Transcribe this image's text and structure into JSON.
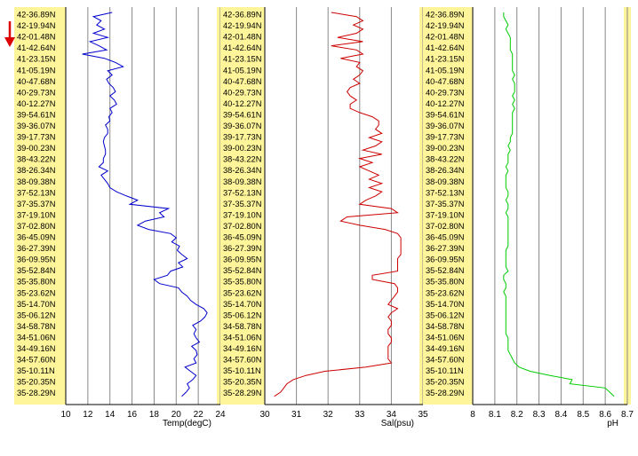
{
  "colors": {
    "label_band": "#fef59a",
    "temp_line": "#0000cc",
    "sal_line": "#cc0000",
    "ph_line": "#00cc00",
    "grid": "#000000",
    "arrow": "#dd0000"
  },
  "latitude_labels": [
    "42-36.89N",
    "42-19.94N",
    "42-01.48N",
    "41-42.64N",
    "41-23.15N",
    "41-05.19N",
    "40-47.68N",
    "40-29.73N",
    "40-12.27N",
    "39-54.61N",
    "39-36.07N",
    "39-17.73N",
    "39-00.23N",
    "38-43.22N",
    "38-26.34N",
    "38-09.38N",
    "37-52.13N",
    "37-35.37N",
    "37-19.10N",
    "37-02.80N",
    "36-45.09N",
    "36-27.39N",
    "36-09.95N",
    "35-52.84N",
    "35-35.80N",
    "35-23.62N",
    "35-14.70N",
    "35-06.12N",
    "34-58.78N",
    "34-51.06N",
    "34-49.16N",
    "34-57.60N",
    "35-10.11N",
    "35-20.35N",
    "35-28.29N"
  ],
  "chart_data": [
    {
      "type": "line",
      "orientation": "vertical-profile",
      "xlabel": "Temp(degC)",
      "xlim": [
        10,
        24
      ],
      "xticks": [
        "10",
        "12",
        "14",
        "16",
        "18",
        "20",
        "22",
        "24"
      ],
      "y_categories_ref": "latitude_labels",
      "series": [
        {
          "values": [
            14.2,
            12.5,
            13.2,
            12.8,
            13.5,
            12.5,
            13.8,
            12.2,
            13.0,
            13.7,
            11.5,
            13.5,
            14.5,
            15.2,
            13.8,
            14.2,
            13.7,
            13.9,
            14.3,
            14.5,
            14.0,
            14.4,
            14.6,
            14.0,
            14.2,
            13.9,
            14.0,
            13.6,
            13.8,
            13.8,
            13.5,
            13.4,
            13.5,
            13.6,
            13.6,
            13.4,
            13.4,
            13.0,
            13.8,
            13.2,
            13.5,
            13.8,
            14.0,
            14.6,
            15.5,
            16.5,
            15.8,
            19.3,
            18.5,
            18.9,
            17.2,
            16.5,
            17.5,
            19.5,
            20.0,
            19.6,
            20.3,
            20.1,
            20.5,
            21.0,
            20.2,
            20.6,
            19.5,
            19.2,
            18.0,
            18.5,
            20.2,
            20.5,
            21.0,
            21.3,
            21.8,
            22.5,
            22.8,
            22.6,
            22.2,
            21.5,
            21.8,
            21.6,
            21.8,
            22.1,
            21.4,
            21.8,
            21.9,
            21.6,
            21.8,
            20.8,
            21.3,
            21.8,
            21.5,
            21.0,
            21.2,
            20.9,
            20.5
          ]
        }
      ]
    },
    {
      "type": "line",
      "orientation": "vertical-profile",
      "xlabel": "Sal(psu)",
      "xlim": [
        30,
        35
      ],
      "xticks": [
        "30",
        "31",
        "32",
        "33",
        "34",
        "35"
      ],
      "y_categories_ref": "latitude_labels",
      "series": [
        {
          "values": [
            32.1,
            32.9,
            33.1,
            32.8,
            33.1,
            32.9,
            32.3,
            33.1,
            32.1,
            32.9,
            33.1,
            32.4,
            33.0,
            32.9,
            33.1,
            33.0,
            32.8,
            33.0,
            32.7,
            32.6,
            32.7,
            32.9,
            32.7,
            32.7,
            33.0,
            33.4,
            33.6,
            33.6,
            33.5,
            33.7,
            33.3,
            33.7,
            33.5,
            33.1,
            33.7,
            33.0,
            33.4,
            33.0,
            33.3,
            33.6,
            33.3,
            33.7,
            33.3,
            33.7,
            33.5,
            33.2,
            33.0,
            34.0,
            34.2,
            32.6,
            32.4,
            33.0,
            33.8,
            34.2,
            34.3,
            34.3,
            34.3,
            34.3,
            34.3,
            34.2,
            34.2,
            34.2,
            34.2,
            33.4,
            33.4,
            34.1,
            34.2,
            34.2,
            34.1,
            34.0,
            33.9,
            34.2,
            34.0,
            33.9,
            34.0,
            34.0,
            33.9,
            33.9,
            34.0,
            34.0,
            33.9,
            33.9,
            33.9,
            33.9,
            34.0,
            33.2,
            31.9,
            31.3,
            30.9,
            30.7,
            30.6,
            30.5,
            30.3
          ]
        }
      ]
    },
    {
      "type": "line",
      "orientation": "vertical-profile",
      "xlabel": "pH",
      "xlim": [
        8,
        8.7
      ],
      "xticks": [
        "8",
        "8.1",
        "8.2",
        "8.3",
        "8.4",
        "8.5",
        "8.6",
        "8.7"
      ],
      "y_categories_ref": "latitude_labels",
      "series": [
        {
          "values": [
            8.14,
            8.14,
            8.15,
            8.16,
            8.15,
            8.16,
            8.17,
            8.17,
            8.17,
            8.17,
            8.18,
            8.18,
            8.18,
            8.18,
            8.18,
            8.19,
            8.18,
            8.19,
            8.19,
            8.19,
            8.18,
            8.19,
            8.18,
            8.19,
            8.18,
            8.18,
            8.18,
            8.18,
            8.18,
            8.18,
            8.17,
            8.17,
            8.16,
            8.17,
            8.16,
            8.16,
            8.16,
            8.15,
            8.16,
            8.15,
            8.15,
            8.15,
            8.15,
            8.16,
            8.16,
            8.15,
            8.16,
            8.16,
            8.15,
            8.16,
            8.16,
            8.16,
            8.16,
            8.16,
            8.16,
            8.16,
            8.16,
            8.15,
            8.15,
            8.15,
            8.15,
            8.15,
            8.16,
            8.14,
            8.14,
            8.15,
            8.15,
            8.14,
            8.15,
            8.15,
            8.15,
            8.15,
            8.15,
            8.15,
            8.15,
            8.15,
            8.15,
            8.15,
            8.16,
            8.16,
            8.16,
            8.16,
            8.17,
            8.18,
            8.19,
            8.21,
            8.26,
            8.35,
            8.45,
            8.44,
            8.6,
            8.62,
            8.64
          ]
        }
      ]
    }
  ]
}
